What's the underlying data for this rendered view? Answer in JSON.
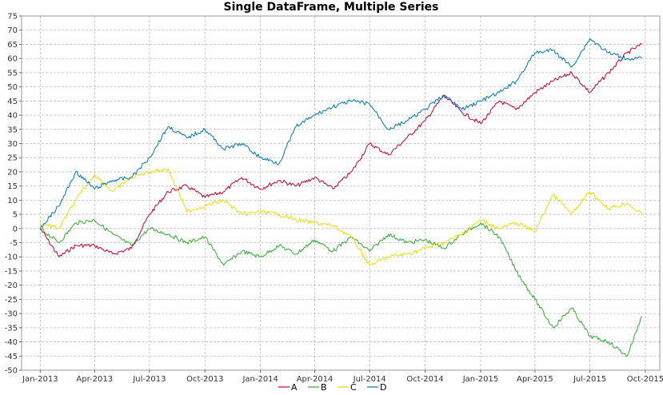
{
  "chart_data": {
    "type": "line",
    "title": "Single DataFrame, Multiple Series",
    "xlabel": "",
    "ylabel": "",
    "x_ticks": [
      "Jan-2013",
      "Apr-2013",
      "Jul-2013",
      "Oct-2013",
      "Jan-2014",
      "Apr-2014",
      "Jul-2014",
      "Oct-2014",
      "Jan-2015",
      "Apr-2015",
      "Jul-2015",
      "Oct-2015"
    ],
    "xlim": [
      "2012-12-01",
      "2015-10-25"
    ],
    "ylim": [
      -50,
      75
    ],
    "y_ticks": [
      -50,
      -45,
      -40,
      -35,
      -30,
      -25,
      -20,
      -15,
      -10,
      -5,
      0,
      5,
      10,
      15,
      20,
      25,
      30,
      35,
      40,
      45,
      50,
      55,
      60,
      65,
      70,
      75
    ],
    "grid": true,
    "legend_position": "bottom",
    "series": [
      {
        "name": "A",
        "color": "#cc0033",
        "x": [
          "2013-01-01",
          "2013-02-01",
          "2013-03-01",
          "2013-04-01",
          "2013-05-01",
          "2013-06-01",
          "2013-07-01",
          "2013-08-01",
          "2013-09-01",
          "2013-10-01",
          "2013-11-01",
          "2013-12-01",
          "2014-01-01",
          "2014-02-01",
          "2014-03-01",
          "2014-04-01",
          "2014-05-01",
          "2014-06-01",
          "2014-07-01",
          "2014-08-01",
          "2014-09-01",
          "2014-10-01",
          "2014-11-01",
          "2014-12-01",
          "2015-01-01",
          "2015-02-01",
          "2015-03-01",
          "2015-04-01",
          "2015-05-01",
          "2015-06-01",
          "2015-07-01",
          "2015-08-01",
          "2015-09-01",
          "2015-09-25"
        ],
        "values": [
          0,
          -10,
          -6,
          -6,
          -9,
          -7,
          5,
          13,
          15,
          11,
          13,
          18,
          14,
          17,
          15,
          18,
          14,
          20,
          30,
          26,
          32,
          38,
          47,
          41,
          37,
          45,
          42,
          48,
          52,
          55,
          48,
          55,
          62,
          65
        ]
      },
      {
        "name": "B",
        "color": "#33aa33",
        "x": [
          "2013-01-01",
          "2013-02-01",
          "2013-03-01",
          "2013-04-01",
          "2013-05-01",
          "2013-06-01",
          "2013-07-01",
          "2013-08-01",
          "2013-09-01",
          "2013-10-01",
          "2013-11-01",
          "2013-12-01",
          "2014-01-01",
          "2014-02-01",
          "2014-03-01",
          "2014-04-01",
          "2014-05-01",
          "2014-06-01",
          "2014-07-01",
          "2014-08-01",
          "2014-09-01",
          "2014-10-01",
          "2014-11-01",
          "2014-12-01",
          "2015-01-01",
          "2015-02-01",
          "2015-03-01",
          "2015-04-01",
          "2015-05-01",
          "2015-06-01",
          "2015-07-01",
          "2015-08-01",
          "2015-09-01",
          "2015-09-25"
        ],
        "values": [
          0,
          -5,
          2,
          3,
          -2,
          -6,
          0,
          -2,
          -5,
          -3,
          -13,
          -8,
          -10,
          -6,
          -9,
          -4,
          -8,
          -3,
          -8,
          -2,
          -5,
          -4,
          -7,
          -2,
          2,
          -3,
          -15,
          -25,
          -35,
          -28,
          -38,
          -40,
          -45,
          -31
        ]
      },
      {
        "name": "C",
        "color": "#eedd00",
        "x": [
          "2013-01-01",
          "2013-02-01",
          "2013-03-01",
          "2013-04-01",
          "2013-05-01",
          "2013-06-01",
          "2013-07-01",
          "2013-08-01",
          "2013-09-01",
          "2013-10-01",
          "2013-11-01",
          "2013-12-01",
          "2014-01-01",
          "2014-02-01",
          "2014-03-01",
          "2014-04-01",
          "2014-05-01",
          "2014-06-01",
          "2014-07-01",
          "2014-08-01",
          "2014-09-01",
          "2014-10-01",
          "2014-11-01",
          "2014-12-01",
          "2015-01-01",
          "2015-02-01",
          "2015-03-01",
          "2015-04-01",
          "2015-05-01",
          "2015-06-01",
          "2015-07-01",
          "2015-08-01",
          "2015-09-01",
          "2015-09-25"
        ],
        "values": [
          2,
          0,
          10,
          19,
          13,
          18,
          20,
          21,
          6,
          8,
          10,
          5,
          6,
          5,
          3,
          2,
          1,
          -3,
          -13,
          -10,
          -9,
          -7,
          -5,
          -2,
          3,
          0,
          2,
          -1,
          12,
          5,
          13,
          7,
          9,
          5
        ]
      },
      {
        "name": "D",
        "color": "#0077bb",
        "x": [
          "2013-01-01",
          "2013-02-01",
          "2013-03-01",
          "2013-04-01",
          "2013-05-01",
          "2013-06-01",
          "2013-07-01",
          "2013-08-01",
          "2013-09-01",
          "2013-10-01",
          "2013-11-01",
          "2013-12-01",
          "2014-01-01",
          "2014-02-01",
          "2014-03-01",
          "2014-04-01",
          "2014-05-01",
          "2014-06-01",
          "2014-07-01",
          "2014-08-01",
          "2014-09-01",
          "2014-10-01",
          "2014-11-01",
          "2014-12-01",
          "2015-01-01",
          "2015-02-01",
          "2015-03-01",
          "2015-04-01",
          "2015-05-01",
          "2015-06-01",
          "2015-07-01",
          "2015-08-01",
          "2015-09-01",
          "2015-09-25"
        ],
        "values": [
          0,
          8,
          20,
          14,
          17,
          18,
          25,
          36,
          32,
          35,
          28,
          30,
          25,
          23,
          36,
          40,
          43,
          45,
          44,
          35,
          38,
          42,
          47,
          42,
          45,
          48,
          52,
          62,
          63,
          57,
          67,
          62,
          60,
          60
        ]
      }
    ]
  }
}
